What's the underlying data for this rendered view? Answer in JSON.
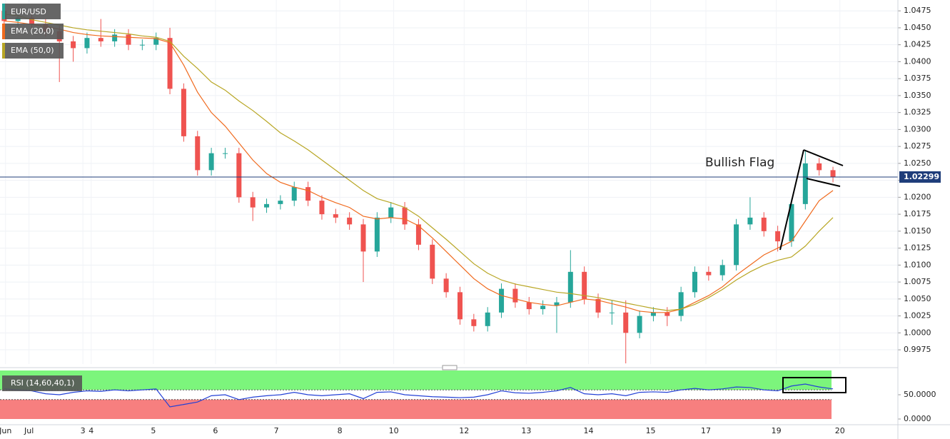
{
  "chart_data": [
    {
      "type": "candlestick",
      "title": "EUR/USD",
      "x": [
        0,
        1,
        2,
        3,
        4,
        5,
        6,
        7,
        8,
        9,
        10,
        11,
        12,
        13,
        14,
        15,
        16,
        17,
        18,
        19,
        20,
        21,
        22,
        23,
        24,
        25,
        26,
        27,
        28,
        29,
        30,
        31,
        32,
        33,
        34,
        35,
        36,
        37,
        38,
        39,
        40,
        41,
        42,
        43,
        44,
        45,
        46,
        47,
        48,
        49,
        50,
        51,
        52,
        53,
        54,
        55,
        56,
        57,
        58,
        59,
        60
      ],
      "open": [
        1.0475,
        1.046,
        1.0465,
        1.0455,
        1.0445,
        1.043,
        1.042,
        1.0435,
        1.043,
        1.044,
        1.0425,
        1.0425,
        1.0435,
        1.036,
        1.029,
        1.024,
        1.0265,
        1.0265,
        1.02,
        1.0185,
        1.019,
        1.0195,
        1.0215,
        1.0195,
        1.0175,
        1.017,
        1.016,
        1.012,
        1.017,
        1.0185,
        1.016,
        1.013,
        1.008,
        1.006,
        1.002,
        1.001,
        1.003,
        1.0065,
        1.0045,
        1.0035,
        1.004,
        1.0045,
        1.009,
        1.005,
        1.003,
        1.003,
        1.0,
        1.0025,
        1.003,
        1.0025,
        1.006,
        1.009,
        1.0085,
        1.01,
        1.016,
        1.017,
        1.015,
        1.0135,
        1.019,
        1.025,
        1.024
      ],
      "high": [
        1.0483,
        1.0473,
        1.0473,
        1.0463,
        1.0453,
        1.0438,
        1.0443,
        1.0463,
        1.0448,
        1.0448,
        1.0433,
        1.0443,
        1.045,
        1.0368,
        1.0298,
        1.0273,
        1.0273,
        1.0273,
        1.0208,
        1.0198,
        1.0203,
        1.0223,
        1.0223,
        1.0203,
        1.0183,
        1.0178,
        1.0168,
        1.0178,
        1.0193,
        1.0193,
        1.0168,
        1.0138,
        1.0088,
        1.0068,
        1.0028,
        1.0038,
        1.0073,
        1.0073,
        1.0053,
        1.0048,
        1.0053,
        1.0122,
        1.0098,
        1.0058,
        1.0048,
        1.0048,
        1.0033,
        1.0038,
        1.0038,
        1.0068,
        1.0098,
        1.0098,
        1.0108,
        1.0168,
        1.02,
        1.0178,
        1.0158,
        1.0198,
        1.027,
        1.0258,
        1.0245
      ],
      "low": [
        1.0452,
        1.0452,
        1.0447,
        1.0437,
        1.037,
        1.04,
        1.0412,
        1.0422,
        1.0422,
        1.0417,
        1.0417,
        1.0417,
        1.0352,
        1.0282,
        1.0232,
        1.0232,
        1.0257,
        1.0192,
        1.0165,
        1.0177,
        1.0182,
        1.0187,
        1.0187,
        1.0167,
        1.0162,
        1.0152,
        1.0075,
        1.0112,
        1.0162,
        1.0152,
        1.0122,
        1.0072,
        1.0052,
        1.0012,
        1.0002,
        1.0002,
        1.0022,
        1.0037,
        1.0027,
        1.0027,
        1.0,
        1.0037,
        1.0042,
        1.0022,
        1.0012,
        0.9955,
        0.9992,
        1.0017,
        1.001,
        1.0017,
        1.0052,
        1.0077,
        1.0077,
        1.0092,
        1.0152,
        1.0142,
        1.012,
        1.0127,
        1.0182,
        1.0232,
        1.0222
      ],
      "close": [
        1.046,
        1.0465,
        1.0455,
        1.0445,
        1.043,
        1.042,
        1.0435,
        1.043,
        1.044,
        1.0425,
        1.0425,
        1.0435,
        1.036,
        1.029,
        1.024,
        1.0265,
        1.0265,
        1.02,
        1.0185,
        1.019,
        1.0195,
        1.0215,
        1.0195,
        1.0175,
        1.017,
        1.016,
        1.012,
        1.017,
        1.0185,
        1.016,
        1.013,
        1.008,
        1.006,
        1.002,
        1.001,
        1.003,
        1.0065,
        1.0045,
        1.0035,
        1.004,
        1.0045,
        1.009,
        1.005,
        1.003,
        1.003,
        1.0,
        1.0025,
        1.003,
        1.0025,
        1.006,
        1.009,
        1.0085,
        1.01,
        1.016,
        1.017,
        1.015,
        1.0135,
        1.019,
        1.025,
        1.024,
        1.023
      ],
      "up_color": "#26a69a",
      "down_color": "#ef5350",
      "series": [
        {
          "name": "EMA (20,0)",
          "color": "#f06a1e",
          "values": [
            1.046,
            1.0458,
            1.0455,
            1.0452,
            1.0448,
            1.0443,
            1.044,
            1.0438,
            1.0437,
            1.0436,
            1.0435,
            1.0434,
            1.0428,
            1.0395,
            1.0355,
            1.0325,
            1.0305,
            1.028,
            1.0255,
            1.0235,
            1.0222,
            1.0215,
            1.021,
            1.02,
            1.0192,
            1.0185,
            1.0172,
            1.0168,
            1.017,
            1.0168,
            1.0158,
            1.014,
            1.012,
            1.01,
            1.008,
            1.0065,
            1.0055,
            1.005,
            1.0045,
            1.0042,
            1.004,
            1.0045,
            1.005,
            1.0048,
            1.0043,
            1.0038,
            1.0032,
            1.003,
            1.003,
            1.0035,
            1.0045,
            1.0055,
            1.0068,
            1.0085,
            1.01,
            1.0115,
            1.0125,
            1.0135,
            1.0165,
            1.0195,
            1.021
          ]
        },
        {
          "name": "EMA (50,0)",
          "color": "#b8a624",
          "values": [
            1.047,
            1.0468,
            1.0462,
            1.0458,
            1.0454,
            1.045,
            1.0447,
            1.0445,
            1.0443,
            1.0441,
            1.0438,
            1.0436,
            1.043,
            1.0408,
            1.039,
            1.037,
            1.0358,
            1.0342,
            1.0328,
            1.0312,
            1.0295,
            1.0283,
            1.027,
            1.0255,
            1.024,
            1.0225,
            1.021,
            1.0198,
            1.0192,
            1.0185,
            1.0172,
            1.0155,
            1.0138,
            1.012,
            1.0102,
            1.0088,
            1.0078,
            1.0072,
            1.0068,
            1.0064,
            1.006,
            1.0058,
            1.0055,
            1.0052,
            1.0048,
            1.0044,
            1.004,
            1.0036,
            1.0033,
            1.0035,
            1.0042,
            1.0052,
            1.0064,
            1.0078,
            1.009,
            1.01,
            1.0107,
            1.0112,
            1.0128,
            1.015,
            1.017
          ]
        }
      ],
      "last_price": 1.02299,
      "last_price_color": "#1f3d7a",
      "annotation": "Bullish Flag",
      "xlim": [
        -0.3,
        64.7
      ],
      "xticks": [
        {
          "value": 0.1,
          "label": "Jun"
        },
        {
          "value": 1.8,
          "label": "Jul"
        },
        {
          "value": 5.7,
          "label": "3"
        },
        {
          "value": 6.3,
          "label": "4"
        },
        {
          "value": 10.8,
          "label": "5"
        },
        {
          "value": 15.3,
          "label": "6"
        },
        {
          "value": 19.7,
          "label": "7"
        },
        {
          "value": 24.3,
          "label": "8"
        },
        {
          "value": 28.2,
          "label": "10"
        },
        {
          "value": 33.3,
          "label": "12"
        },
        {
          "value": 37.8,
          "label": "13"
        },
        {
          "value": 42.3,
          "label": "14"
        },
        {
          "value": 46.8,
          "label": "15"
        },
        {
          "value": 50.8,
          "label": "17"
        },
        {
          "value": 55.9,
          "label": "19"
        },
        {
          "value": 60.5,
          "label": "20"
        }
      ],
      "ylim": [
        0.9954,
        1.0491
      ],
      "yticks": [
        0.9975,
        {
          "value": 1.0,
          "label": "1.0000"
        },
        1.0025,
        {
          "value": 1.005,
          "label": "1.0050"
        },
        1.0075,
        {
          "value": 1.01,
          "label": "1.0100"
        },
        1.0125,
        {
          "value": 1.015,
          "label": "1.0150"
        },
        1.0175,
        {
          "value": 1.02,
          "label": "1.0200"
        },
        1.0225,
        {
          "value": 1.025,
          "label": "1.0250"
        },
        1.0275,
        {
          "value": 1.03,
          "label": "1.0300"
        },
        1.0325,
        {
          "value": 1.035,
          "label": "1.0350"
        },
        1.0375,
        {
          "value": 1.04,
          "label": "1.0400"
        },
        1.0425,
        {
          "value": 1.045,
          "label": "1.0450"
        },
        1.0475
      ],
      "grid": true
    },
    {
      "type": "line",
      "x": [
        0,
        1,
        2,
        3,
        4,
        5,
        6,
        7,
        8,
        9,
        10,
        11,
        12,
        13,
        14,
        15,
        16,
        17,
        18,
        19,
        20,
        21,
        22,
        23,
        24,
        25,
        26,
        27,
        28,
        29,
        30,
        31,
        32,
        33,
        34,
        35,
        36,
        37,
        38,
        39,
        40,
        41,
        42,
        43,
        44,
        45,
        46,
        47,
        48,
        49,
        50,
        51,
        52,
        53,
        54,
        55,
        56,
        57,
        58,
        59,
        60
      ],
      "series": [
        {
          "name": "RSI (14,60,40,1)",
          "color": "#2340d6",
          "values": [
            62,
            60,
            58,
            52,
            50,
            55,
            58,
            57,
            60,
            58,
            60,
            62,
            25,
            30,
            35,
            48,
            50,
            40,
            45,
            48,
            50,
            55,
            50,
            48,
            50,
            52,
            42,
            55,
            56,
            50,
            48,
            46,
            45,
            44,
            45,
            50,
            58,
            54,
            53,
            55,
            58,
            65,
            52,
            50,
            52,
            48,
            55,
            56,
            55,
            60,
            63,
            60,
            62,
            66,
            65,
            60,
            58,
            68,
            72,
            66,
            62
          ]
        }
      ],
      "overbought": 60,
      "oversold": 40,
      "overbought_color": "#7cf57c",
      "oversold_color": "#f77f7f",
      "xlim": [
        -0.3,
        64.7
      ],
      "ylim": [
        0,
        100
      ],
      "yticks": [
        {
          "value": 0,
          "label": "0.0000"
        },
        {
          "value": 50,
          "label": "50.0000"
        }
      ]
    }
  ]
}
